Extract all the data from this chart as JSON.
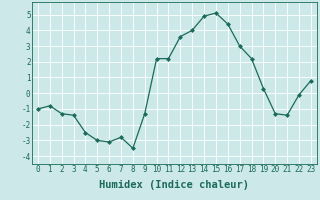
{
  "x": [
    0,
    1,
    2,
    3,
    4,
    5,
    6,
    7,
    8,
    9,
    10,
    11,
    12,
    13,
    14,
    15,
    16,
    17,
    18,
    19,
    20,
    21,
    22,
    23
  ],
  "y": [
    -1.0,
    -0.8,
    -1.3,
    -1.4,
    -2.5,
    -3.0,
    -3.1,
    -2.8,
    -3.5,
    -1.3,
    2.2,
    2.2,
    3.6,
    4.0,
    4.9,
    5.1,
    4.4,
    3.0,
    2.2,
    0.3,
    -1.3,
    -1.4,
    -0.1,
    0.8
  ],
  "line_color": "#1a6b5a",
  "marker": "D",
  "marker_size": 2.0,
  "bg_color": "#cce8e8",
  "grid_color": "#ffffff",
  "xlabel": "Humidex (Indice chaleur)",
  "ylim": [
    -4.5,
    5.8
  ],
  "yticks": [
    -4,
    -3,
    -2,
    -1,
    0,
    1,
    2,
    3,
    4,
    5
  ],
  "xticks": [
    0,
    1,
    2,
    3,
    4,
    5,
    6,
    7,
    8,
    9,
    10,
    11,
    12,
    13,
    14,
    15,
    16,
    17,
    18,
    19,
    20,
    21,
    22,
    23
  ],
  "tick_label_fontsize": 5.5,
  "xlabel_fontsize": 7.5
}
